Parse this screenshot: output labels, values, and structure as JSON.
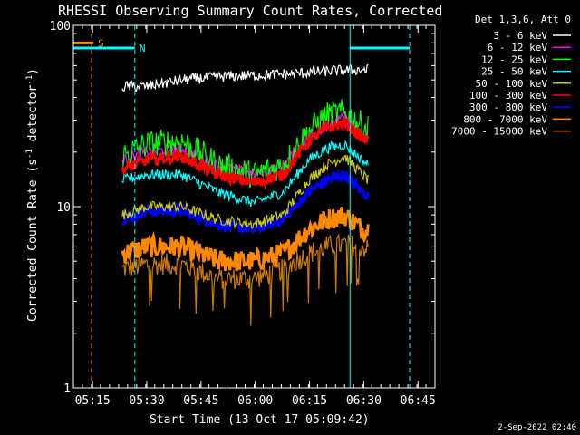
{
  "chart_data": {
    "type": "line",
    "title": "RHESSI Observing Summary Count Rates, Corrected",
    "xlabel": "Start Time (13-Oct-17 05:09:42)",
    "ylabel": "Corrected Count Rate (s⁻¹ detector⁻¹)",
    "ylabel_main": "Corrected Count Rate (s",
    "ylabel_sup1": "-1",
    "ylabel_mid": " detector",
    "ylabel_sup2": "-1",
    "ylabel_end": ")",
    "y_scale": "log",
    "ylim": [
      1,
      100
    ],
    "xlim_minutes": [
      0,
      100
    ],
    "x_ticks": [
      {
        "label": "05:15",
        "minute": 5.3
      },
      {
        "label": "05:30",
        "minute": 20.3
      },
      {
        "label": "05:45",
        "minute": 35.3
      },
      {
        "label": "06:00",
        "minute": 50.3
      },
      {
        "label": "06:15",
        "minute": 65.3
      },
      {
        "label": "06:30",
        "minute": 80.3
      },
      {
        "label": "06:45",
        "minute": 95.3
      }
    ],
    "y_ticks": [
      {
        "label": "1",
        "value": 1
      },
      {
        "label": "10",
        "value": 10
      },
      {
        "label": "100",
        "value": 100
      }
    ],
    "legend_title": "Det 1,3,6, Att 0",
    "legend_position": "right",
    "data_span_minutes": [
      13.5,
      81.5
    ],
    "series": [
      {
        "name": "3 - 6 keV",
        "color": "#ffffff",
        "points": [
          [
            13.5,
            46
          ],
          [
            20,
            46
          ],
          [
            30,
            50
          ],
          [
            40,
            52
          ],
          [
            50,
            53
          ],
          [
            60,
            54
          ],
          [
            70,
            56
          ],
          [
            80,
            57
          ],
          [
            81.5,
            57
          ]
        ]
      },
      {
        "name": "6 - 12 keV",
        "color": "#ff00ff",
        "points": [
          [
            13.5,
            18
          ],
          [
            20,
            20
          ],
          [
            30,
            21
          ],
          [
            40,
            17
          ],
          [
            50,
            15
          ],
          [
            58,
            17
          ],
          [
            65,
            24
          ],
          [
            70,
            28
          ],
          [
            75,
            31
          ],
          [
            80,
            25
          ],
          [
            81.5,
            24
          ]
        ]
      },
      {
        "name": "12 - 25 keV",
        "color": "#00ff00",
        "points": [
          [
            13.5,
            19
          ],
          [
            20,
            22
          ],
          [
            30,
            23
          ],
          [
            40,
            17
          ],
          [
            50,
            15
          ],
          [
            58,
            17
          ],
          [
            65,
            26
          ],
          [
            70,
            32
          ],
          [
            75,
            33
          ],
          [
            80,
            28
          ],
          [
            81.5,
            27
          ]
        ]
      },
      {
        "name": "25 - 50 keV",
        "color": "#00ffff",
        "points": [
          [
            13.5,
            14
          ],
          [
            20,
            15
          ],
          [
            30,
            15
          ],
          [
            40,
            12
          ],
          [
            50,
            10.5
          ],
          [
            58,
            12
          ],
          [
            65,
            18
          ],
          [
            70,
            21
          ],
          [
            75,
            22
          ],
          [
            80,
            18
          ],
          [
            81.5,
            17
          ]
        ]
      },
      {
        "name": "50 - 100 keV",
        "color": "#cccc00",
        "points": [
          [
            13.5,
            9
          ],
          [
            20,
            10
          ],
          [
            30,
            10
          ],
          [
            40,
            8.5
          ],
          [
            50,
            8
          ],
          [
            58,
            9
          ],
          [
            65,
            14
          ],
          [
            70,
            17
          ],
          [
            75,
            19
          ],
          [
            80,
            15
          ],
          [
            81.5,
            14
          ]
        ]
      },
      {
        "name": "100 - 300 keV",
        "color": "#ff0000",
        "points": [
          [
            13.5,
            16
          ],
          [
            20,
            18
          ],
          [
            30,
            19
          ],
          [
            40,
            15
          ],
          [
            50,
            13.5
          ],
          [
            58,
            15
          ],
          [
            65,
            23
          ],
          [
            70,
            27
          ],
          [
            75,
            29
          ],
          [
            80,
            24
          ],
          [
            81.5,
            23
          ]
        ]
      },
      {
        "name": "300 - 800 keV",
        "color": "#0000ff",
        "points": [
          [
            13.5,
            8.5
          ],
          [
            20,
            9.5
          ],
          [
            30,
            9.5
          ],
          [
            40,
            8
          ],
          [
            50,
            7.5
          ],
          [
            58,
            8.5
          ],
          [
            65,
            12
          ],
          [
            70,
            14
          ],
          [
            75,
            15
          ],
          [
            80,
            12
          ],
          [
            81.5,
            11.5
          ]
        ]
      },
      {
        "name": "800 - 7000 keV",
        "color": "#ff8800",
        "points": [
          [
            13.5,
            5.5
          ],
          [
            20,
            6
          ],
          [
            30,
            6
          ],
          [
            40,
            5
          ],
          [
            50,
            5
          ],
          [
            58,
            5.5
          ],
          [
            65,
            7.5
          ],
          [
            70,
            8.5
          ],
          [
            75,
            9
          ],
          [
            80,
            7.5
          ],
          [
            81.5,
            7.5
          ]
        ]
      },
      {
        "name": "7000 - 15000 keV",
        "color": "#cc7a00",
        "points": [
          [
            13.5,
            4.5
          ],
          [
            20,
            4.8
          ],
          [
            30,
            4.8
          ],
          [
            40,
            4
          ],
          [
            50,
            4
          ],
          [
            58,
            4.5
          ],
          [
            65,
            5.5
          ],
          [
            70,
            6
          ],
          [
            75,
            6.2
          ],
          [
            80,
            6
          ],
          [
            81.5,
            5.8
          ]
        ]
      }
    ],
    "flags": [
      {
        "label": "S",
        "color": "#ff8800",
        "minute_start": 0,
        "minute_end": 5.5,
        "value": 80,
        "dashed_at_minute": 5
      },
      {
        "label": "N",
        "color": "#00ffff",
        "minute_start": 0,
        "minute_end": 17,
        "value": 75,
        "dashed_at_minute": 17
      },
      {
        "label": "",
        "color": "#00ffff",
        "minute_start": 76.5,
        "minute_end": 93,
        "value": 75,
        "dashed_at_minute": 93
      }
    ],
    "solid_vline_minutes": [
      76.5
    ]
  },
  "footer_date": "2-Sep-2022 02:40"
}
